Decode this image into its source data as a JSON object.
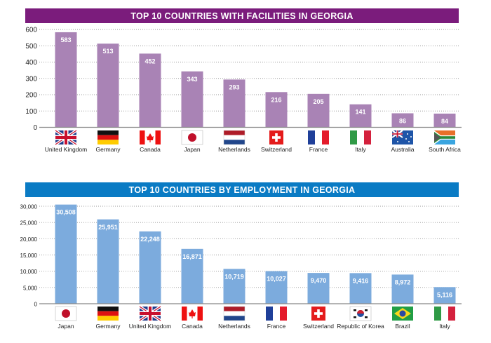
{
  "chart_data": [
    {
      "type": "bar",
      "title": "TOP 10 COUNTRIES WITH FACILITIES IN GEORGIA",
      "categories": [
        "United Kingdom",
        "Germany",
        "Canada",
        "Japan",
        "Netherlands",
        "Switzerland",
        "France",
        "Italy",
        "Australia",
        "South Africa"
      ],
      "values": [
        583,
        513,
        452,
        343,
        293,
        216,
        205,
        141,
        86,
        84
      ],
      "value_labels": [
        "583",
        "513",
        "452",
        "343",
        "293",
        "216",
        "205",
        "141",
        "86",
        "84"
      ],
      "yticks": [
        0,
        100,
        200,
        300,
        400,
        500,
        600
      ],
      "ytick_labels": [
        "0",
        "100",
        "200",
        "300",
        "400",
        "500",
        "600"
      ],
      "ylim": [
        0,
        600
      ],
      "grid": "dotted horizontal",
      "title_color": "#7b1c7c",
      "bar_color": "#a983b5"
    },
    {
      "type": "bar",
      "title": "TOP 10 COUNTRIES BY EMPLOYMENT IN GEORGIA",
      "categories": [
        "Japan",
        "Germany",
        "United Kingdom",
        "Canada",
        "Netherlands",
        "France",
        "Switzerland",
        "Republic of Korea",
        "Brazil",
        "Italy"
      ],
      "values": [
        30508,
        25951,
        22248,
        16871,
        10719,
        10027,
        9470,
        9416,
        8972,
        5116
      ],
      "value_labels": [
        "30,508",
        "25,951",
        "22,248",
        "16,871",
        "10,719",
        "10,027",
        "9,470",
        "9,416",
        "8,972",
        "5,116"
      ],
      "yticks": [
        0,
        5000,
        10000,
        15000,
        20000,
        25000,
        30000
      ],
      "ytick_labels": [
        "0",
        "5,000",
        "10,000",
        "15,000",
        "20,000",
        "25,000",
        "30,000"
      ],
      "ylim": [
        0,
        30000
      ],
      "grid": "dotted horizontal",
      "title_color": "#0a7bc4",
      "bar_color": "#7cabdd"
    }
  ]
}
